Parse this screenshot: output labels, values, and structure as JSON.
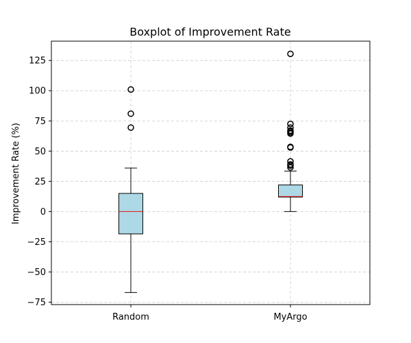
{
  "chart_data": {
    "type": "boxplot",
    "title": "Boxplot of Improvement Rate",
    "xlabel": "",
    "ylabel": "Improvement Rate (%)",
    "categories": [
      "Random",
      "MyArgo"
    ],
    "ylim": [
      -77,
      141
    ],
    "yticks": [
      -75,
      -50,
      -25,
      0,
      25,
      50,
      75,
      100,
      125
    ],
    "ytick_labels": [
      "−75",
      "−50",
      "−25",
      "0",
      "25",
      "50",
      "75",
      "100",
      "125"
    ],
    "grid": true,
    "colors": {
      "box_fill": "#add8e6",
      "median": "#e8150f",
      "grid": "#cccccc",
      "axis": "#000000"
    },
    "boxes": [
      {
        "name": "Random",
        "whisker_low": -67,
        "q1": -18.5,
        "median": 0,
        "q3": 15,
        "whisker_high": 36,
        "outliers": [
          69.5,
          81,
          101
        ]
      },
      {
        "name": "MyArgo",
        "whisker_low": 0,
        "q1": 12,
        "median": 12.5,
        "q3": 22,
        "whisker_high": 33.5,
        "outliers": [
          36.5,
          38,
          39,
          41.5,
          53,
          53.5,
          64.5,
          65.5,
          66.5,
          67,
          69.5,
          72.5,
          130.5
        ]
      }
    ]
  }
}
